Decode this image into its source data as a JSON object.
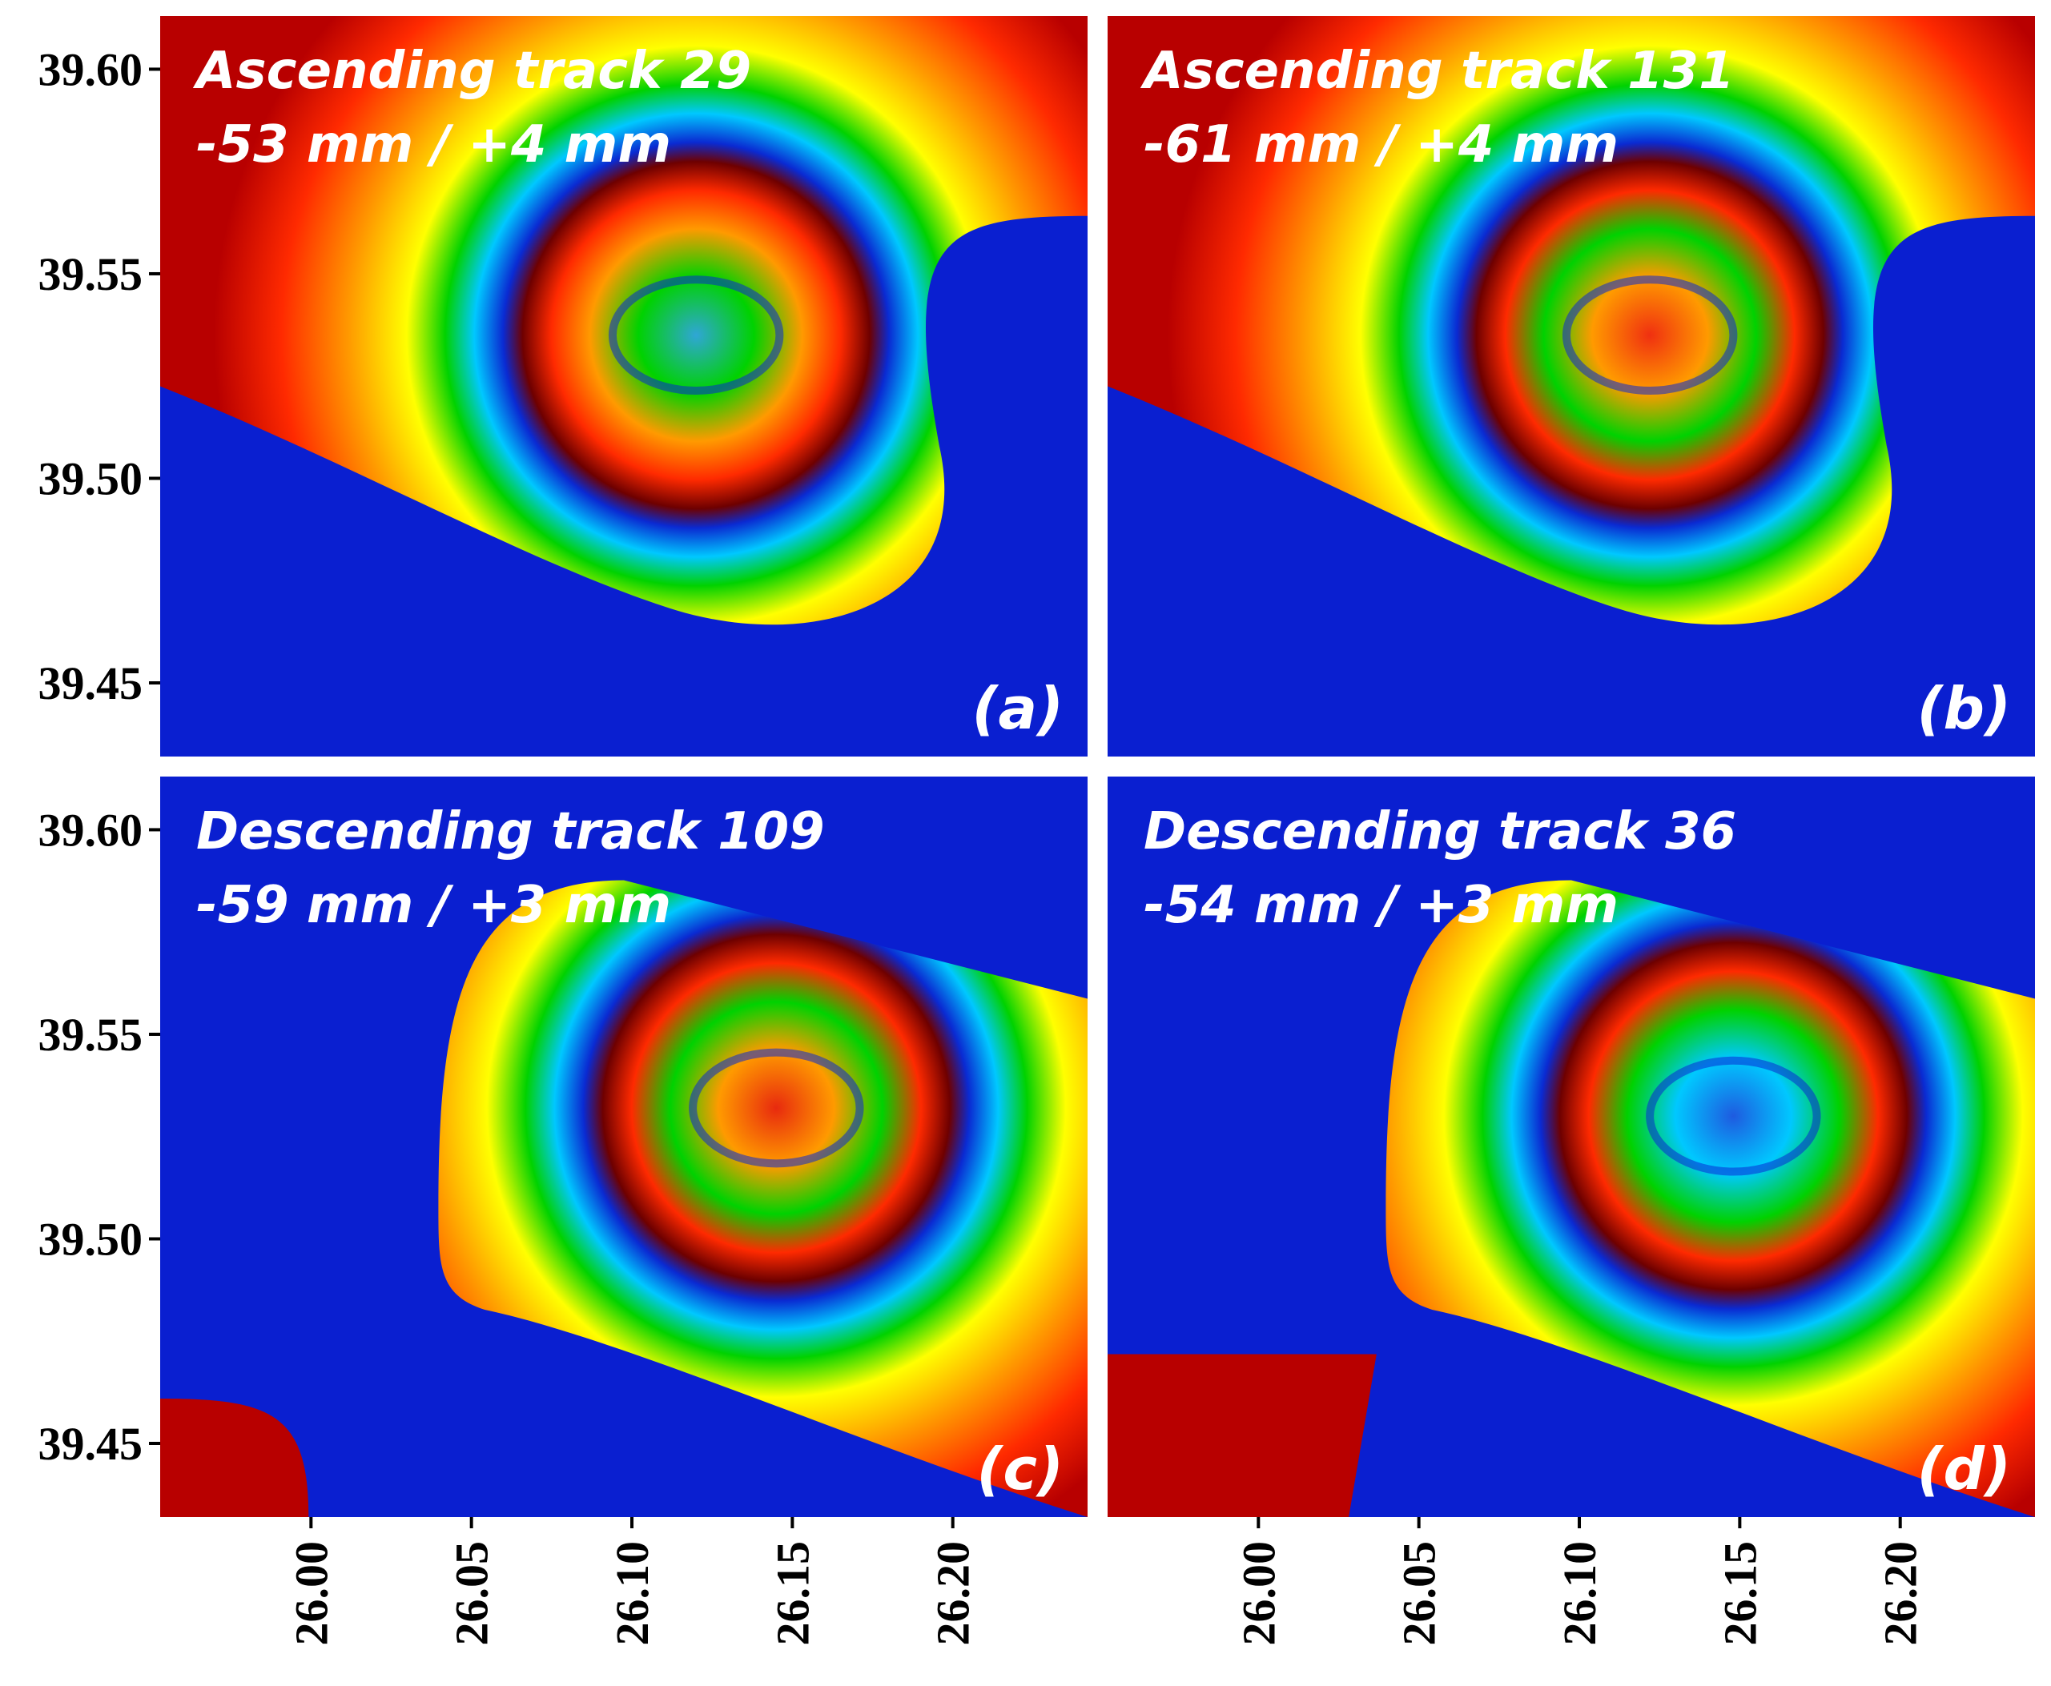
{
  "chart_data": [
    {
      "type": "heatmap",
      "panel": "(a)",
      "title": "Ascending track 29",
      "range_text": "-53 mm / +4 mm",
      "range_mm": [
        -53,
        4
      ],
      "fringe_center": [
        26.12,
        39.535
      ],
      "center_color": "#2fa6d6",
      "region_boundary": "upper-left-red-lower-right-blue",
      "x_ticks": [],
      "y_ticks": [
        "39.60",
        "39.55",
        "39.50",
        "39.45"
      ],
      "xlim": [
        25.953,
        26.242
      ],
      "ylim": [
        39.432,
        39.613
      ]
    },
    {
      "type": "heatmap",
      "panel": "(b)",
      "title": "Ascending track 131",
      "range_text": "-61 mm / +4 mm",
      "range_mm": [
        -61,
        4
      ],
      "fringe_center": [
        26.122,
        39.535
      ],
      "center_color": "#f03010",
      "region_boundary": "upper-left-red-lower-right-blue",
      "x_ticks": [],
      "y_ticks": [],
      "xlim": [
        25.953,
        26.242
      ],
      "ylim": [
        39.432,
        39.613
      ]
    },
    {
      "type": "heatmap",
      "panel": "(c)",
      "title": "Descending track 109",
      "range_text": "-59 mm / +3 mm",
      "range_mm": [
        -59,
        3
      ],
      "fringe_center": [
        26.145,
        39.532
      ],
      "center_color": "#e82a0e",
      "region_boundary": "center-red-surrounded-blue",
      "x_ticks": [
        "26.00",
        "26.05",
        "26.10",
        "26.15",
        "26.20"
      ],
      "y_ticks": [
        "39.60",
        "39.55",
        "39.50",
        "39.45"
      ],
      "xlim": [
        25.953,
        26.242
      ],
      "ylim": [
        39.432,
        39.613
      ]
    },
    {
      "type": "heatmap",
      "panel": "(d)",
      "title": "Descending track 36",
      "range_text": "-54 mm / +3 mm",
      "range_mm": [
        -54,
        3
      ],
      "fringe_center": [
        26.148,
        39.53
      ],
      "center_color": "#1e5be0",
      "region_boundary": "center-red-surrounded-blue",
      "x_ticks": [
        "26.00",
        "26.05",
        "26.10",
        "26.15",
        "26.20"
      ],
      "y_ticks": [],
      "xlim": [
        25.953,
        26.242
      ],
      "ylim": [
        39.432,
        39.613
      ]
    }
  ],
  "colors": {
    "ramp": [
      "#6e0000",
      "#c80000",
      "#ff2a00",
      "#ff9a00",
      "#ffff00",
      "#00d200",
      "#00c8ff",
      "#0a2ad2",
      "#0000a0"
    ],
    "background_blue": "#0a1fd0",
    "background_red": "#b80000"
  }
}
